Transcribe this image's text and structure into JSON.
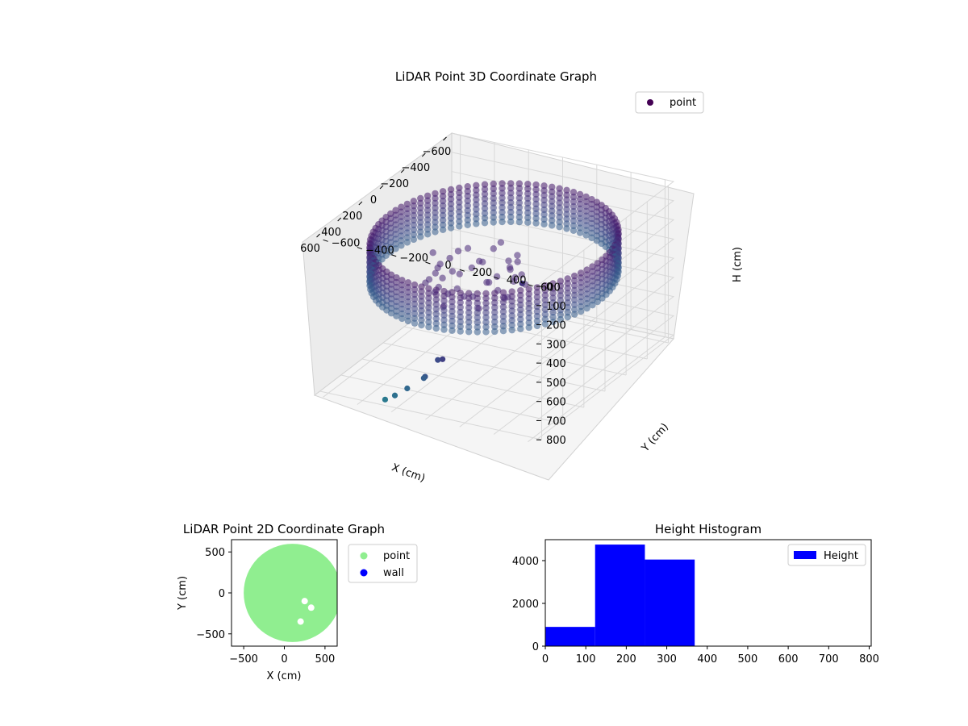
{
  "chart_data": [
    {
      "type": "scatter3d",
      "title": "LiDAR Point 3D Coordinate Graph",
      "xlabel": "X (cm)",
      "ylabel": "Y (cm)",
      "zlabel": "H (cm)",
      "x_ticks": [
        "−600",
        "−400",
        "−200",
        "0",
        "200",
        "400",
        "600"
      ],
      "y_ticks": [
        "−600",
        "−400",
        "−200",
        "0",
        "200",
        "400",
        "600"
      ],
      "z_ticks": [
        "0",
        "100",
        "200",
        "300",
        "400",
        "500",
        "600",
        "700",
        "800"
      ],
      "xlim": [
        -650,
        650
      ],
      "ylim": [
        -650,
        650
      ],
      "zlim": [
        0,
        820
      ],
      "z_inverted": true,
      "legend": {
        "entries": [
          {
            "label": "point",
            "color": "#440154"
          }
        ],
        "loc": "upper right"
      },
      "colormap": "viridis",
      "series": [
        {
          "name": "point",
          "shape": "ring",
          "radius": 620,
          "height_range": [
            150,
            350
          ]
        },
        {
          "name": "point",
          "shape": "inner-cluster",
          "radius": 250,
          "height_range": [
            250,
            420
          ]
        },
        {
          "name": "point",
          "outliers": [
            {
              "x": 300,
              "y": 350,
              "h": 190
            },
            {
              "x": 440,
              "y": -30,
              "h": 600
            },
            {
              "x": 420,
              "y": -70,
              "h": 620
            },
            {
              "x": 460,
              "y": -120,
              "h": 700
            },
            {
              "x": 440,
              "y": -140,
              "h": 720
            },
            {
              "x": 500,
              "y": -200,
              "h": 760
            },
            {
              "x": 520,
              "y": -260,
              "h": 800
            },
            {
              "x": 580,
              "y": -280,
              "h": 800
            }
          ]
        }
      ]
    },
    {
      "type": "scatter",
      "title": "LiDAR Point 2D Coordinate Graph",
      "xlabel": "X (cm)",
      "ylabel": "Y (cm)",
      "x_ticks": [
        -500,
        0,
        500
      ],
      "y_ticks": [
        -500,
        0,
        500
      ],
      "xlim": [
        -650,
        650
      ],
      "ylim": [
        -650,
        650
      ],
      "legend": {
        "loc": "outside right",
        "entries": [
          {
            "label": "point",
            "color": "#90ee90"
          },
          {
            "label": "wall",
            "color": "#0000ff"
          }
        ]
      },
      "series": [
        {
          "name": "point",
          "color": "#90ee90",
          "shape": "filled-disc",
          "center": [
            100,
            0
          ],
          "radius": 600
        }
      ]
    },
    {
      "type": "bar",
      "title": "Height Histogram",
      "xlabel": "",
      "ylabel": "",
      "bins": [
        [
          0,
          123
        ],
        [
          123,
          246
        ],
        [
          246,
          369
        ],
        [
          369,
          492
        ],
        [
          492,
          615
        ],
        [
          615,
          738
        ],
        [
          738,
          800
        ]
      ],
      "values": [
        900,
        4750,
        4050,
        0,
        0,
        0,
        0
      ],
      "x_ticks": [
        0,
        100,
        200,
        300,
        400,
        500,
        600,
        700,
        800
      ],
      "y_ticks": [
        0,
        2000,
        4000
      ],
      "xlim": [
        0,
        805
      ],
      "ylim": [
        0,
        4980
      ],
      "legend": {
        "loc": "upper right",
        "entries": [
          {
            "label": "Height",
            "color": "#0000ff"
          }
        ]
      },
      "color": "#0000ff"
    }
  ]
}
